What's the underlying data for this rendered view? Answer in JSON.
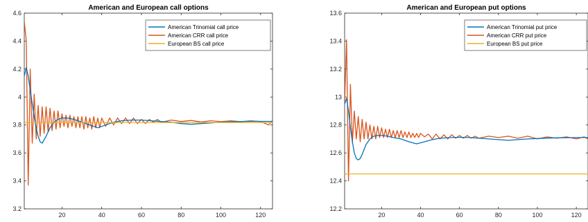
{
  "chart_data": [
    {
      "type": "line",
      "title": "American and European call options",
      "xlabel": "",
      "ylabel": "",
      "xlim": [
        1,
        126
      ],
      "ylim": [
        3.2,
        4.6
      ],
      "xticks": [
        20,
        40,
        60,
        80,
        100,
        120
      ],
      "yticks": [
        3.2,
        3.4,
        3.6,
        3.8,
        4,
        4.2,
        4.4,
        4.6
      ],
      "ytick_labels": [
        "3.2",
        "3.4",
        "3.6",
        "3.8",
        "4",
        "4.2",
        "4.4",
        "4.6"
      ],
      "grid": false,
      "legend_position": "top-right",
      "series": [
        {
          "name": "American Trinomial call price",
          "color": "#0072BD",
          "x": [
            1,
            2,
            3,
            4,
            5,
            6,
            7,
            8,
            9,
            10,
            12,
            14,
            16,
            18,
            20,
            23,
            26,
            30,
            34,
            38,
            42,
            46,
            50,
            55,
            60,
            65,
            70,
            75,
            80,
            85,
            90,
            95,
            100,
            105,
            110,
            115,
            120,
            126
          ],
          "y": [
            4.15,
            4.21,
            4.15,
            4.05,
            3.95,
            3.86,
            3.78,
            3.72,
            3.68,
            3.67,
            3.72,
            3.78,
            3.82,
            3.84,
            3.85,
            3.85,
            3.84,
            3.82,
            3.8,
            3.78,
            3.8,
            3.82,
            3.83,
            3.835,
            3.835,
            3.83,
            3.825,
            3.82,
            3.81,
            3.805,
            3.81,
            3.815,
            3.82,
            3.823,
            3.825,
            3.826,
            3.826,
            3.826
          ]
        },
        {
          "name": "American CRR call price",
          "color": "#D95319",
          "x": [
            1,
            2,
            3,
            4,
            5,
            6,
            7,
            8,
            9,
            10,
            11,
            12,
            13,
            14,
            15,
            16,
            17,
            18,
            19,
            20,
            21,
            22,
            23,
            24,
            25,
            26,
            27,
            28,
            29,
            30,
            31,
            32,
            33,
            34,
            35,
            36,
            37,
            38,
            39,
            40,
            42,
            44,
            46,
            48,
            50,
            52,
            54,
            56,
            58,
            60,
            62,
            64,
            66,
            68,
            70,
            75,
            80,
            85,
            90,
            95,
            100,
            105,
            110,
            115,
            120,
            124,
            126
          ],
          "y": [
            4.54,
            4.4,
            3.37,
            4.2,
            3.67,
            4.02,
            3.7,
            3.94,
            3.72,
            3.93,
            3.74,
            3.93,
            3.75,
            3.92,
            3.76,
            3.9,
            3.77,
            3.9,
            3.78,
            3.88,
            3.79,
            3.87,
            3.78,
            3.87,
            3.79,
            3.86,
            3.78,
            3.86,
            3.78,
            3.86,
            3.77,
            3.86,
            3.78,
            3.85,
            3.77,
            3.86,
            3.78,
            3.85,
            3.78,
            3.85,
            3.79,
            3.85,
            3.8,
            3.85,
            3.81,
            3.85,
            3.81,
            3.85,
            3.81,
            3.84,
            3.81,
            3.84,
            3.82,
            3.84,
            3.82,
            3.835,
            3.825,
            3.832,
            3.822,
            3.83,
            3.824,
            3.83,
            3.824,
            3.83,
            3.825,
            3.8,
            3.83
          ]
        },
        {
          "name": "European BS call price",
          "color": "#EDB120",
          "x": [
            1,
            126
          ],
          "y": [
            3.818,
            3.818
          ]
        }
      ]
    },
    {
      "type": "line",
      "title": "American and European put options",
      "xlabel": "",
      "ylabel": "",
      "xlim": [
        1,
        126
      ],
      "ylim": [
        12.2,
        13.6
      ],
      "xticks": [
        20,
        40,
        60,
        80,
        100,
        120
      ],
      "yticks": [
        12.2,
        12.4,
        12.6,
        12.8,
        13,
        13.2,
        13.4,
        13.6
      ],
      "ytick_labels": [
        "12.2",
        "12.4",
        "12.6",
        "12.8",
        "13",
        "13.2",
        "13.4",
        "13.6"
      ],
      "grid": false,
      "legend_position": "top-right",
      "series": [
        {
          "name": "American Trinomial put price",
          "color": "#0072BD",
          "x": [
            1,
            2,
            3,
            4,
            5,
            6,
            7,
            8,
            9,
            10,
            12,
            14,
            16,
            18,
            20,
            23,
            26,
            30,
            34,
            38,
            42,
            46,
            50,
            55,
            60,
            65,
            70,
            75,
            80,
            85,
            90,
            95,
            100,
            105,
            110,
            115,
            120,
            126
          ],
          "y": [
            12.95,
            12.99,
            12.9,
            12.78,
            12.68,
            12.6,
            12.56,
            12.55,
            12.56,
            12.59,
            12.66,
            12.7,
            12.72,
            12.725,
            12.725,
            12.72,
            12.71,
            12.7,
            12.68,
            12.665,
            12.68,
            12.695,
            12.705,
            12.71,
            12.712,
            12.71,
            12.705,
            12.7,
            12.695,
            12.69,
            12.695,
            12.7,
            12.703,
            12.706,
            12.708,
            12.709,
            12.71,
            12.71
          ]
        },
        {
          "name": "American CRR put price",
          "color": "#D95319",
          "x": [
            1,
            2,
            3,
            4,
            5,
            6,
            7,
            8,
            9,
            10,
            11,
            12,
            13,
            14,
            15,
            16,
            17,
            18,
            19,
            20,
            21,
            22,
            23,
            24,
            25,
            26,
            27,
            28,
            29,
            30,
            31,
            32,
            33,
            34,
            35,
            36,
            37,
            38,
            39,
            40,
            42,
            44,
            46,
            48,
            50,
            52,
            54,
            56,
            58,
            60,
            62,
            64,
            66,
            68,
            70,
            75,
            80,
            85,
            90,
            95,
            100,
            105,
            110,
            115,
            120,
            124,
            126
          ],
          "y": [
            12.95,
            13.41,
            12.4,
            13.09,
            12.67,
            12.9,
            12.7,
            12.86,
            12.68,
            12.84,
            12.7,
            12.82,
            12.7,
            12.8,
            12.7,
            12.79,
            12.7,
            12.79,
            12.71,
            12.78,
            12.71,
            12.77,
            12.71,
            12.77,
            12.71,
            12.76,
            12.71,
            12.76,
            12.71,
            12.76,
            12.71,
            12.75,
            12.71,
            12.75,
            12.71,
            12.74,
            12.71,
            12.74,
            12.71,
            12.74,
            12.715,
            12.735,
            12.7,
            12.735,
            12.7,
            12.73,
            12.7,
            12.73,
            12.705,
            12.725,
            12.705,
            12.725,
            12.705,
            12.72,
            12.705,
            12.72,
            12.71,
            12.72,
            12.705,
            12.72,
            12.7,
            12.715,
            12.705,
            12.715,
            12.7,
            12.715,
            12.7
          ]
        },
        {
          "name": "European BS put price",
          "color": "#EDB120",
          "x": [
            1,
            126
          ],
          "y": [
            12.45,
            12.45
          ]
        }
      ]
    }
  ]
}
